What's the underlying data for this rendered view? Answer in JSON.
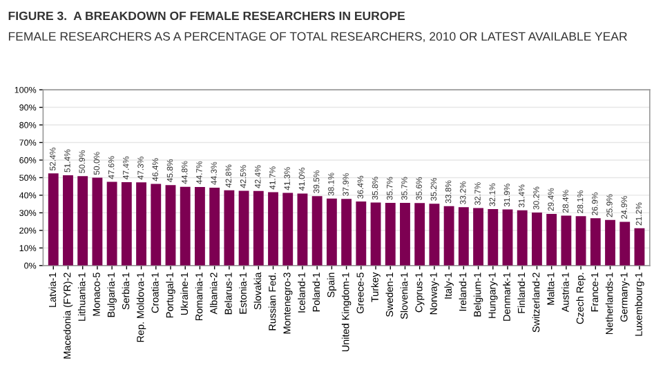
{
  "chart_data": {
    "type": "bar",
    "title": "FIGURE 3.  A BREAKDOWN OF FEMALE RESEARCHERS IN EUROPE",
    "subtitle": "FEMALE RESEARCHERS AS A PERCENTAGE OF TOTAL RESEARCHERS, 2010 OR LATEST AVAILABLE YEAR",
    "categories": [
      "Latvia-1",
      "Macedonia (FYR)-2",
      "Lithuania-1",
      "Monaco-5",
      "Bulgaria-1",
      "Serbia-1",
      "Rep. Moldova-1",
      "Croatia-1",
      "Portugal-1",
      "Ukraine-1",
      "Romania-1",
      "Albania-2",
      "Belarus-1",
      "Estonia-1",
      "Slovakia",
      "Russian Fed.",
      "Montenegro-3",
      "Iceland-1",
      "Poland-1",
      "Spain",
      "United Kingdom-1",
      "Greece-5",
      "Turkey",
      "Sweden-1",
      "Slovenia-1",
      "Cyprus-1",
      "Norway-1",
      "Italy-1",
      "Ireland-1",
      "Belgium-1",
      "Hungary-1",
      "Denmark-1",
      "Finland-1",
      "Switzerland-2",
      "Malta-1",
      "Austria-1",
      "Czech Rep.",
      "France-1",
      "Netherlands-1",
      "Germany-1",
      "Luxembourg-1"
    ],
    "values": [
      52.4,
      51.4,
      50.9,
      50.0,
      47.6,
      47.4,
      47.3,
      46.4,
      45.8,
      44.8,
      44.7,
      44.3,
      42.8,
      42.5,
      42.4,
      41.7,
      41.3,
      41.0,
      39.5,
      38.1,
      37.9,
      36.4,
      35.8,
      35.7,
      35.7,
      35.6,
      35.2,
      33.8,
      33.2,
      32.7,
      32.1,
      31.9,
      31.4,
      30.2,
      29.4,
      28.4,
      28.1,
      26.9,
      25.9,
      24.9,
      21.2
    ],
    "value_labels": [
      "52.4%",
      "51.4%",
      "50.9%",
      "50.0%",
      "47.6%",
      "47.4%",
      "47.3%",
      "46.4%",
      "45.8%",
      "44.8%",
      "44.7%",
      "44.3%",
      "42.8%",
      "42.5%",
      "42.4%",
      "41.7%",
      "41.3%",
      "41.0%",
      "39.5%",
      "38.1%",
      "37.9%",
      "36.4%",
      "35.8%",
      "35.7%",
      "35.7%",
      "35.6%",
      "35.2%",
      "33.8%",
      "33.2%",
      "32.7%",
      "32.1%",
      "31.9%",
      "31.4%",
      "30.2%",
      "29.4%",
      "28.4%",
      "28.1%",
      "26.9%",
      "25.9%",
      "24.9%",
      "21.2%"
    ],
    "color": "#7d0052",
    "ylim": [
      0,
      100
    ],
    "yticks": [
      {
        "value": 0,
        "label": "0%"
      },
      {
        "value": 10,
        "label": "10%"
      },
      {
        "value": 20,
        "label": "20%"
      },
      {
        "value": 30,
        "label": "30%"
      },
      {
        "value": 40,
        "label": "40%"
      },
      {
        "value": 50,
        "label": "50%"
      },
      {
        "value": 60,
        "label": "60%"
      },
      {
        "value": 70,
        "label": "70%"
      },
      {
        "value": 80,
        "label": "80%"
      },
      {
        "value": 90,
        "label": "90%"
      },
      {
        "value": 100,
        "label": "100%"
      }
    ],
    "grid": "y",
    "legend": false
  }
}
